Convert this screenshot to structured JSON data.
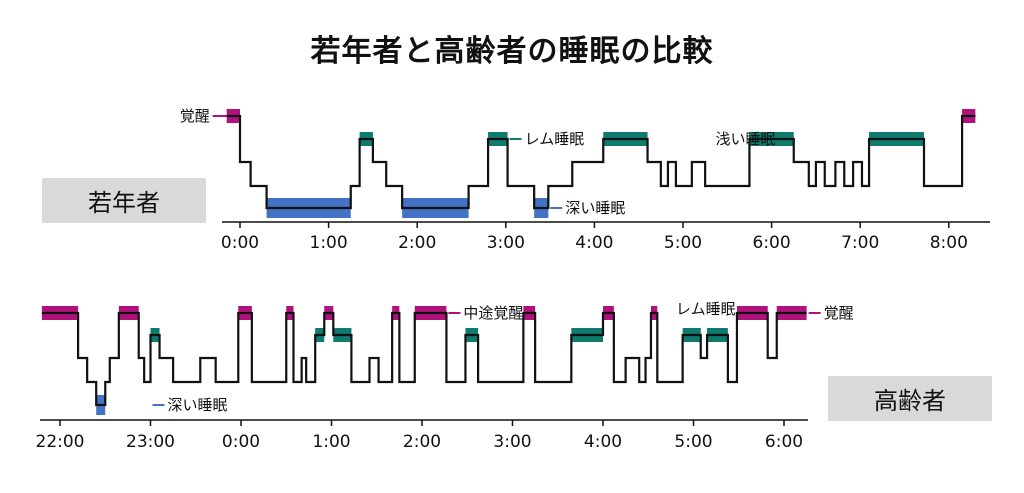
{
  "title": "若年者と高齢者の睡眠の比較",
  "colors": {
    "wake": "#b0127d",
    "rem": "#0e7b6e",
    "light": "#ffffff",
    "deep": "#4472c4",
    "axis": "#111111"
  },
  "chart_data": [
    {
      "type": "hypnogram",
      "group_label": "若年者",
      "stage_order": [
        "覚醒",
        "レム睡眠",
        "浅い睡眠",
        "深い睡眠"
      ],
      "xticks": [
        "0:00",
        "1:00",
        "2:00",
        "3:00",
        "4:00",
        "5:00",
        "6:00",
        "7:00",
        "8:00"
      ],
      "x_start_hours": 0,
      "segments": [
        [
          -0.15,
          0.0,
          "W"
        ],
        [
          0.0,
          0.12,
          "L2"
        ],
        [
          0.12,
          0.3,
          "L3"
        ],
        [
          0.3,
          1.25,
          "D"
        ],
        [
          1.25,
          1.35,
          "L3"
        ],
        [
          1.35,
          1.5,
          "R"
        ],
        [
          1.5,
          1.65,
          "L2"
        ],
        [
          1.65,
          1.83,
          "L3"
        ],
        [
          1.83,
          2.58,
          "D"
        ],
        [
          2.58,
          2.8,
          "L3"
        ],
        [
          2.8,
          3.02,
          "R"
        ],
        [
          3.02,
          3.32,
          "L3"
        ],
        [
          3.32,
          3.48,
          "D"
        ],
        [
          3.48,
          3.75,
          "L3"
        ],
        [
          3.75,
          4.1,
          "L2"
        ],
        [
          4.1,
          4.6,
          "R"
        ],
        [
          4.6,
          4.75,
          "L2"
        ],
        [
          4.75,
          4.83,
          "L3"
        ],
        [
          4.83,
          4.92,
          "L2"
        ],
        [
          4.92,
          5.1,
          "L3"
        ],
        [
          5.1,
          5.25,
          "L2"
        ],
        [
          5.25,
          5.75,
          "L3"
        ],
        [
          5.75,
          6.25,
          "R"
        ],
        [
          6.25,
          6.42,
          "L2"
        ],
        [
          6.42,
          6.5,
          "L3"
        ],
        [
          6.5,
          6.6,
          "L2"
        ],
        [
          6.6,
          6.72,
          "L3"
        ],
        [
          6.72,
          6.82,
          "L2"
        ],
        [
          6.82,
          6.92,
          "L3"
        ],
        [
          6.92,
          7.02,
          "L2"
        ],
        [
          7.02,
          7.1,
          "L3"
        ],
        [
          7.1,
          7.72,
          "R"
        ],
        [
          7.72,
          8.15,
          "L3"
        ],
        [
          8.15,
          8.3,
          "W"
        ]
      ],
      "annotations": [
        {
          "text": "覚醒",
          "stage": "W",
          "x": -0.15,
          "side": "left"
        },
        {
          "text": "レム睡眠",
          "stage": "R",
          "x": 3.02,
          "side": "right"
        },
        {
          "text": "浅い睡眠",
          "stage": "R",
          "x": 4.6,
          "side": "right",
          "plain": true
        },
        {
          "text": "深い睡眠",
          "stage": "D",
          "x": 3.48,
          "side": "right"
        }
      ]
    },
    {
      "type": "hypnogram",
      "group_label": "高齢者",
      "stage_order": [
        "覚醒",
        "レム睡眠",
        "浅い睡眠",
        "深い睡眠"
      ],
      "xticks": [
        "22:00",
        "23:00",
        "0:00",
        "1:00",
        "2:00",
        "3:00",
        "4:00",
        "5:00",
        "6:00"
      ],
      "x_start_hours": 22,
      "segments": [
        [
          21.8,
          22.2,
          "W"
        ],
        [
          22.2,
          22.3,
          "L2"
        ],
        [
          22.3,
          22.4,
          "L3"
        ],
        [
          22.4,
          22.5,
          "D"
        ],
        [
          22.5,
          22.55,
          "L3"
        ],
        [
          22.55,
          22.65,
          "L2"
        ],
        [
          22.65,
          22.87,
          "W"
        ],
        [
          22.87,
          22.93,
          "L2"
        ],
        [
          22.93,
          23.0,
          "L3"
        ],
        [
          23.0,
          23.1,
          "R"
        ],
        [
          23.1,
          23.25,
          "L2"
        ],
        [
          23.25,
          23.55,
          "L3"
        ],
        [
          23.55,
          23.72,
          "L2"
        ],
        [
          23.72,
          23.97,
          "L3"
        ],
        [
          23.97,
          24.12,
          "W"
        ],
        [
          24.12,
          24.5,
          "L3"
        ],
        [
          24.5,
          24.58,
          "W"
        ],
        [
          24.58,
          24.67,
          "L3"
        ],
        [
          24.67,
          24.72,
          "L2"
        ],
        [
          24.72,
          24.82,
          "L3"
        ],
        [
          24.82,
          24.92,
          "R"
        ],
        [
          24.92,
          25.02,
          "W"
        ],
        [
          25.02,
          25.22,
          "R"
        ],
        [
          25.22,
          25.42,
          "L3"
        ],
        [
          25.42,
          25.52,
          "L2"
        ],
        [
          25.52,
          25.67,
          "L3"
        ],
        [
          25.67,
          25.75,
          "W"
        ],
        [
          25.75,
          25.92,
          "L3"
        ],
        [
          25.92,
          26.27,
          "W"
        ],
        [
          26.27,
          26.48,
          "L3"
        ],
        [
          26.48,
          26.62,
          "R"
        ],
        [
          26.62,
          27.12,
          "L3"
        ],
        [
          27.12,
          27.25,
          "W"
        ],
        [
          27.25,
          27.65,
          "L3"
        ],
        [
          27.65,
          28.0,
          "R"
        ],
        [
          28.0,
          28.12,
          "W"
        ],
        [
          28.12,
          28.25,
          "L3"
        ],
        [
          28.25,
          28.4,
          "L2"
        ],
        [
          28.4,
          28.47,
          "L3"
        ],
        [
          28.47,
          28.53,
          "L2"
        ],
        [
          28.53,
          28.6,
          "W"
        ],
        [
          28.6,
          28.88,
          "L3"
        ],
        [
          28.88,
          29.08,
          "R"
        ],
        [
          29.08,
          29.15,
          "L2"
        ],
        [
          29.15,
          29.38,
          "R"
        ],
        [
          29.38,
          29.48,
          "L3"
        ],
        [
          29.48,
          29.82,
          "W"
        ],
        [
          29.82,
          29.92,
          "L2"
        ],
        [
          29.92,
          30.25,
          "W"
        ]
      ],
      "annotations": [
        {
          "text": "中途覚醒",
          "stage": "W",
          "x": 26.27,
          "side": "right"
        },
        {
          "text": "レム睡眠",
          "stage": "R",
          "x": 29.08,
          "side": "above",
          "plain": true
        },
        {
          "text": "覚醒",
          "stage": "W",
          "x": 30.25,
          "side": "right"
        },
        {
          "text": "深い睡眠",
          "stage": "D",
          "x": 23.0,
          "side": "right"
        }
      ]
    }
  ]
}
